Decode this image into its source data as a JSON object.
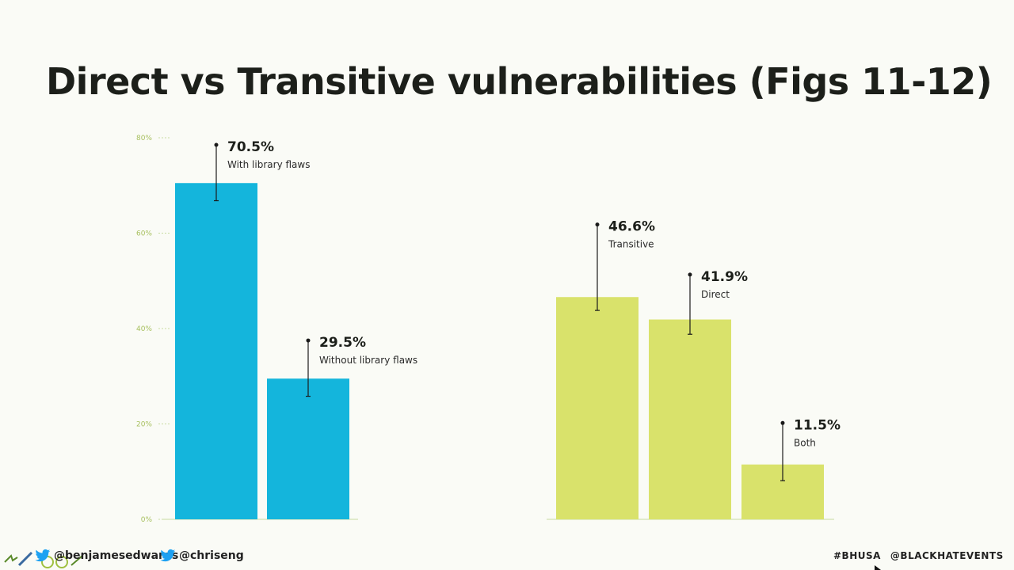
{
  "slide": {
    "title": "Direct vs Transitive vulnerabilities (Figs 11-12)"
  },
  "colors": {
    "left_bars": "#14b5dc",
    "right_bars": "#d9e26b",
    "axis_text": "#a8c060",
    "grid": "#c8dba0",
    "title": "#1c1f1a"
  },
  "chart_data": {
    "type": "bar",
    "ylim": [
      0,
      80
    ],
    "yticks": [
      0,
      20,
      40,
      60,
      80
    ],
    "ytick_labels": [
      "0%",
      "20%",
      "40%",
      "60%",
      "80%"
    ],
    "groups": [
      {
        "color_key": "left_bars",
        "categories": [
          "With library flaws",
          "Without library flaws"
        ],
        "values": [
          70.5,
          29.5
        ],
        "value_labels": [
          "70.5%",
          "29.5%"
        ],
        "error_high": [
          78.5,
          37.5
        ],
        "error_low": [
          66.8,
          25.8
        ]
      },
      {
        "color_key": "right_bars",
        "categories": [
          "Transitive",
          "Direct",
          "Both"
        ],
        "values": [
          46.6,
          41.9,
          11.5
        ],
        "value_labels": [
          "46.6%",
          "41.9%",
          "11.5%"
        ],
        "error_high": [
          61.8,
          51.3,
          20.2
        ],
        "error_low": [
          43.8,
          38.8,
          8.1
        ]
      }
    ]
  },
  "footer": {
    "handle_1": "@benjamesedwards",
    "handle_2": "@chriseng",
    "hashtag": "#BHUSA",
    "events": "@BLACKHATEVENTS",
    "icons": [
      "doodle-icons",
      "twitter-bird-icon",
      "cursor-icon"
    ]
  }
}
